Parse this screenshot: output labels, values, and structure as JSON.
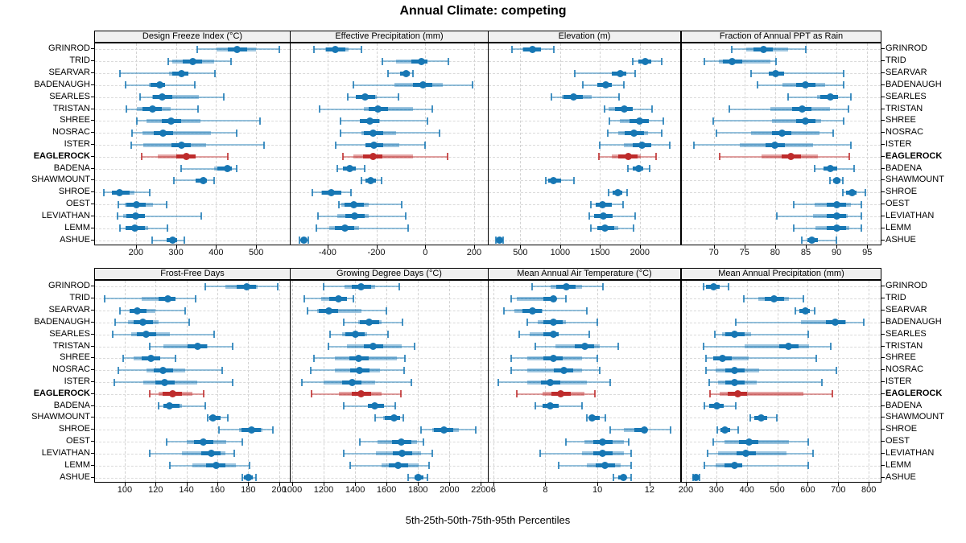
{
  "title": "Annual Climate: competing",
  "caption": "5th-25th-50th-75th-95th Percentiles",
  "colors": {
    "series": "#1777b4",
    "highlight": "#be2c2c",
    "strip_bg": "#f0f0f0",
    "panel_border": "#000000",
    "grid": "#d2d2d2",
    "text": "#000000"
  },
  "sites": [
    "GRINROD",
    "TRID",
    "SEARVAR",
    "BADENAUGH",
    "SEARLES",
    "TRISTAN",
    "SHREE",
    "NOSRAC",
    "ISTER",
    "EAGLEROCK",
    "BADENA",
    "SHAWMOUNT",
    "SHROE",
    "OEST",
    "LEVIATHAN",
    "LEMM",
    "ASHUE"
  ],
  "highlight_site": "EAGLEROCK",
  "chart_data": {
    "type": "dotplot-percentiles",
    "percentiles": [
      5,
      25,
      50,
      75,
      95
    ],
    "legend_position": "none",
    "grid": "dashed",
    "panels": [
      {
        "title": "Design Freeze Index (°C)",
        "row": 0,
        "col": 0,
        "domain": [
          98,
          584
        ],
        "ticks": [
          200,
          300,
          400,
          500
        ],
        "tick_labels": [
          "200",
          "300",
          "400",
          "500"
        ],
        "values": [
          [
            354,
            402,
            453,
            500,
            558
          ],
          [
            280,
            290,
            341,
            395,
            437
          ],
          [
            160,
            283,
            314,
            331,
            397
          ],
          [
            174,
            233,
            260,
            273,
            348
          ],
          [
            210,
            240,
            266,
            357,
            419
          ],
          [
            176,
            202,
            241,
            287,
            356
          ],
          [
            203,
            226,
            288,
            361,
            509
          ],
          [
            190,
            216,
            268,
            388,
            451
          ],
          [
            188,
            219,
            313,
            375,
            520
          ],
          [
            215,
            255,
            325,
            350,
            430
          ],
          [
            313,
            395,
            428,
            440,
            452
          ],
          [
            295,
            350,
            368,
            378,
            396
          ],
          [
            120,
            140,
            160,
            196,
            234
          ],
          [
            157,
            172,
            201,
            243,
            277
          ],
          [
            155,
            168,
            200,
            222,
            364
          ],
          [
            160,
            175,
            198,
            230,
            278
          ],
          [
            241,
            276,
            291,
            303,
            320
          ]
        ]
      },
      {
        "title": "Effective Precipitation (mm)",
        "row": 0,
        "col": 1,
        "domain": [
          -551,
          256
        ],
        "ticks": [
          -400,
          -200,
          0,
          200
        ],
        "tick_labels": [
          "-400",
          "-200",
          "0",
          "200"
        ],
        "values": [
          [
            -455,
            -410,
            -367,
            -315,
            -262
          ],
          [
            -174,
            -120,
            -16,
            8,
            94
          ],
          [
            -152,
            -103,
            -78,
            -65,
            -50
          ],
          [
            -294,
            -125,
            -10,
            70,
            194
          ],
          [
            -316,
            -283,
            -245,
            -200,
            -110
          ],
          [
            -433,
            -250,
            -193,
            -50,
            28
          ],
          [
            -346,
            -267,
            -228,
            -185,
            8
          ],
          [
            -346,
            -260,
            -213,
            -120,
            58
          ],
          [
            -367,
            -245,
            -211,
            -105,
            -2
          ],
          [
            -336,
            -293,
            -215,
            -50,
            92
          ],
          [
            -360,
            -338,
            -309,
            -283,
            -248
          ],
          [
            -261,
            -245,
            -224,
            -202,
            -179
          ],
          [
            -463,
            -425,
            -384,
            -343,
            -303
          ],
          [
            -354,
            -343,
            -291,
            -230,
            -97
          ],
          [
            -438,
            -360,
            -289,
            -233,
            -81
          ],
          [
            -447,
            -392,
            -330,
            -270,
            -70
          ],
          [
            -516,
            -509,
            -498,
            -485,
            -477
          ]
        ]
      },
      {
        "title": "Elevation (m)",
        "row": 0,
        "col": 2,
        "domain": [
          102,
          2507
        ],
        "ticks": [
          500,
          1000,
          1500,
          2000
        ],
        "tick_labels": [
          "500",
          "1000",
          "1500",
          "2000"
        ],
        "values": [
          [
            393,
            527,
            654,
            760,
            920
          ],
          [
            1915,
            1980,
            2070,
            2145,
            2270
          ],
          [
            1180,
            1645,
            1756,
            1829,
            1946
          ],
          [
            1288,
            1462,
            1572,
            1646,
            1803
          ],
          [
            894,
            1021,
            1168,
            1395,
            1736
          ],
          [
            1562,
            1612,
            1806,
            1913,
            2153
          ],
          [
            1619,
            1746,
            1996,
            2113,
            2297
          ],
          [
            1602,
            1729,
            1930,
            2100,
            2270
          ],
          [
            1495,
            1796,
            2030,
            2145,
            2380
          ],
          [
            1489,
            1646,
            1853,
            2013,
            2203
          ],
          [
            1846,
            1913,
            1990,
            2046,
            2120
          ],
          [
            820,
            854,
            918,
            1011,
            1178
          ],
          [
            1612,
            1662,
            1722,
            1779,
            1836
          ],
          [
            1388,
            1445,
            1529,
            1646,
            1789
          ],
          [
            1368,
            1429,
            1545,
            1662,
            1946
          ],
          [
            1388,
            1462,
            1562,
            1729,
            1923
          ],
          [
            195,
            210,
            236,
            265,
            283
          ]
        ]
      },
      {
        "title": "Fraction of Annual PPT as Rain",
        "row": 0,
        "col": 3,
        "domain": [
          64.8,
          97.2
        ],
        "ticks": [
          70,
          75,
          80,
          85,
          90,
          95
        ],
        "tick_labels": [
          "70",
          "75",
          "80",
          "85",
          "90",
          "95"
        ],
        "values": [
          [
            72.9,
            75.3,
            78.1,
            82.1,
            85.0
          ],
          [
            68.5,
            70.8,
            73.0,
            79.2,
            80.1
          ],
          [
            76.1,
            79.0,
            80.1,
            81.5,
            91.2
          ],
          [
            77.1,
            81.2,
            85.0,
            88.1,
            91.2
          ],
          [
            82.1,
            86.8,
            89.0,
            90.3,
            92.3
          ],
          [
            72.5,
            79.2,
            84.4,
            89.0,
            92.0
          ],
          [
            69.9,
            79.5,
            85.0,
            87.5,
            91.2
          ],
          [
            70.5,
            76.1,
            81.1,
            87.2,
            89.5
          ],
          [
            66.8,
            74.3,
            80.0,
            86.2,
            92.3
          ],
          [
            71.0,
            77.8,
            82.6,
            87.0,
            92.1
          ],
          [
            86.4,
            87.9,
            89.0,
            90.1,
            92.9
          ],
          [
            88.9,
            89.4,
            90.1,
            90.6,
            91.1
          ],
          [
            91.0,
            91.6,
            92.5,
            93.3,
            94.7
          ],
          [
            83.0,
            86.4,
            90.0,
            92.3,
            94.1
          ],
          [
            80.3,
            86.2,
            90.0,
            91.8,
            94.1
          ],
          [
            83.0,
            86.6,
            90.0,
            92.1,
            94.1
          ],
          [
            84.4,
            85.3,
            86.0,
            87.0,
            90.0
          ]
        ]
      },
      {
        "title": "Frost-Free Days",
        "row": 1,
        "col": 0,
        "domain": [
          80.7,
          207
        ],
        "ticks": [
          100,
          120,
          140,
          160,
          180,
          200
        ],
        "tick_labels": [
          "100",
          "120",
          "140",
          "160",
          "180",
          "200"
        ],
        "values": [
          [
            152,
            165,
            179,
            186,
            199
          ],
          [
            87,
            111,
            128,
            133,
            146
          ],
          [
            97,
            103,
            108,
            120,
            139
          ],
          [
            94,
            102,
            112,
            122,
            142
          ],
          [
            92,
            104,
            114,
            129,
            158
          ],
          [
            116,
            125,
            147,
            154,
            170
          ],
          [
            99,
            106,
            117,
            123,
            133
          ],
          [
            96,
            114,
            125,
            139,
            163
          ],
          [
            93,
            112,
            126,
            147,
            170
          ],
          [
            116,
            122,
            131,
            144,
            151
          ],
          [
            122,
            125,
            129,
            137,
            152
          ],
          [
            154,
            155,
            157,
            162,
            167
          ],
          [
            161,
            174,
            182,
            189,
            196
          ],
          [
            127,
            140,
            151,
            166,
            176
          ],
          [
            116,
            137,
            156,
            165,
            171
          ],
          [
            129,
            144,
            159,
            172,
            181
          ],
          [
            176,
            177,
            180,
            183,
            185
          ]
        ]
      },
      {
        "title": "Growing Degree Days (°C)",
        "row": 1,
        "col": 1,
        "domain": [
          990,
          2244
        ],
        "ticks": [
          1000,
          1200,
          1400,
          1600,
          1800,
          2000,
          2200
        ],
        "tick_labels": [
          "1000",
          "1200",
          "1400",
          "1600",
          "1800",
          "2000",
          "2200"
        ],
        "values": [
          [
            1200,
            1335,
            1440,
            1530,
            1683
          ],
          [
            1075,
            1185,
            1295,
            1350,
            1390
          ],
          [
            1095,
            1160,
            1233,
            1442,
            1597
          ],
          [
            1330,
            1420,
            1490,
            1570,
            1700
          ],
          [
            1240,
            1320,
            1400,
            1475,
            1610
          ],
          [
            1230,
            1350,
            1515,
            1695,
            1780
          ],
          [
            1140,
            1270,
            1425,
            1665,
            1715
          ],
          [
            1120,
            1270,
            1430,
            1560,
            1710
          ],
          [
            1060,
            1200,
            1380,
            1530,
            1760
          ],
          [
            1125,
            1295,
            1440,
            1570,
            1690
          ],
          [
            1330,
            1480,
            1525,
            1585,
            1655
          ],
          [
            1525,
            1580,
            1650,
            1686,
            1708
          ],
          [
            1820,
            1890,
            1965,
            2060,
            2165
          ],
          [
            1430,
            1545,
            1695,
            1795,
            1835
          ],
          [
            1330,
            1530,
            1700,
            1820,
            1890
          ],
          [
            1370,
            1570,
            1675,
            1803,
            1868
          ],
          [
            1735,
            1777,
            1803,
            1833,
            1858
          ]
        ]
      },
      {
        "title": "Mean Annual Air Temperature (°C)",
        "row": 1,
        "col": 2,
        "domain": [
          5.82,
          13.18
        ],
        "ticks": [
          6,
          8,
          10,
          12
        ],
        "tick_labels": [
          "6",
          "8",
          "10",
          "12"
        ],
        "values": [
          [
            7.5,
            8.2,
            8.8,
            9.4,
            10.2
          ],
          [
            6.7,
            6.9,
            8.3,
            8.4,
            8.8
          ],
          [
            6.4,
            6.8,
            7.5,
            7.9,
            9.6
          ],
          [
            7.3,
            7.7,
            8.3,
            8.8,
            10.0
          ],
          [
            7.0,
            7.4,
            8.3,
            8.5,
            9.7
          ],
          [
            7.6,
            8.4,
            9.5,
            10.1,
            10.8
          ],
          [
            6.7,
            7.3,
            8.3,
            9.4,
            10.0
          ],
          [
            6.7,
            7.3,
            8.7,
            9.4,
            10.1
          ],
          [
            6.2,
            7.3,
            8.2,
            9.6,
            10.5
          ],
          [
            6.9,
            7.9,
            8.6,
            9.5,
            9.9
          ],
          [
            7.6,
            7.9,
            8.2,
            8.5,
            9.4
          ],
          [
            9.6,
            9.7,
            9.8,
            10.1,
            10.3
          ],
          [
            10.5,
            11.0,
            11.8,
            11.9,
            12.8
          ],
          [
            8.8,
            9.5,
            10.2,
            11.0,
            11.2
          ],
          [
            7.8,
            9.4,
            10.2,
            11.0,
            11.3
          ],
          [
            8.5,
            9.6,
            10.3,
            10.9,
            11.3
          ],
          [
            10.6,
            10.8,
            11.0,
            11.1,
            11.3
          ]
        ]
      },
      {
        "title": "Mean Annual Precipitation (mm)",
        "row": 1,
        "col": 3,
        "domain": [
          187,
          839
        ],
        "ticks": [
          200,
          300,
          400,
          500,
          600,
          700,
          800
        ],
        "tick_labels": [
          "200",
          "300",
          "400",
          "500",
          "600",
          "700",
          "800"
        ],
        "values": [
          [
            258,
            267,
            291,
            311,
            340
          ],
          [
            390,
            437,
            490,
            538,
            586
          ],
          [
            560,
            573,
            593,
            608,
            623
          ],
          [
            363,
            577,
            690,
            726,
            783
          ],
          [
            296,
            320,
            360,
            415,
            602
          ],
          [
            258,
            394,
            538,
            603,
            675
          ],
          [
            267,
            289,
            320,
            405,
            628
          ],
          [
            265,
            298,
            360,
            440,
            693
          ],
          [
            276,
            307,
            360,
            433,
            645
          ],
          [
            279,
            311,
            370,
            586,
            680
          ],
          [
            261,
            276,
            302,
            324,
            363
          ],
          [
            411,
            424,
            446,
            468,
            499
          ],
          [
            302,
            314,
            328,
            346,
            372
          ],
          [
            289,
            328,
            407,
            538,
            602
          ],
          [
            272,
            307,
            398,
            530,
            617
          ],
          [
            261,
            298,
            359,
            385,
            602
          ],
          [
            224,
            226,
            232,
            238,
            244
          ]
        ]
      }
    ]
  }
}
